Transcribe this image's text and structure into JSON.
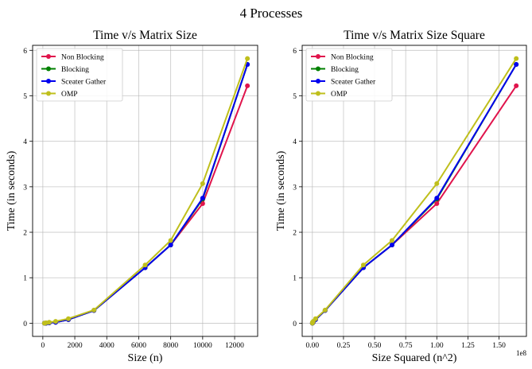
{
  "figure": {
    "suptitle": "4 Processes"
  },
  "chart_data": [
    {
      "type": "line",
      "title": "Time v/s Matrix Size",
      "xlabel": "Size (n)",
      "ylabel": "Time (in seconds)",
      "xlim": [
        -640,
        13440
      ],
      "ylim": [
        -0.29,
        6.11
      ],
      "xticks": [
        0,
        2000,
        4000,
        6000,
        8000,
        10000,
        12000
      ],
      "xtick_labels": [
        "0",
        "2000",
        "4000",
        "6000",
        "8000",
        "10000",
        "12000"
      ],
      "yticks": [
        0,
        1,
        2,
        3,
        4,
        5,
        6
      ],
      "ytick_labels": [
        "0",
        "1",
        "2",
        "3",
        "4",
        "5",
        "6"
      ],
      "x_offset_label": "",
      "grid": true,
      "legend_position": "upper-left",
      "x": [
        100,
        200,
        400,
        800,
        1600,
        3200,
        6400,
        8000,
        10000,
        12800
      ],
      "series": [
        {
          "name": "Non Blocking",
          "color": "#e0144c",
          "values": [
            0.0,
            0.0,
            0.01,
            0.02,
            0.08,
            0.28,
            1.22,
            1.72,
            2.63,
            5.22
          ]
        },
        {
          "name": "Blocking",
          "color": "#008000",
          "values": [
            0.0,
            0.0,
            0.01,
            0.02,
            0.08,
            0.28,
            1.22,
            1.72,
            2.73,
            5.69
          ]
        },
        {
          "name": "Sceater Gather",
          "color": "#0000ee",
          "values": [
            0.0,
            0.0,
            0.01,
            0.02,
            0.08,
            0.28,
            1.22,
            1.72,
            2.75,
            5.69
          ]
        },
        {
          "name": "OMP",
          "color": "#bfbf1c",
          "values": [
            0.0,
            0.01,
            0.02,
            0.04,
            0.1,
            0.29,
            1.28,
            1.82,
            3.07,
            5.82
          ]
        }
      ]
    },
    {
      "type": "line",
      "title": "Time v/s Matrix Size Square",
      "xlabel": "Size Squared (n^2)",
      "ylabel": "Time (in seconds)",
      "xlim": [
        -8192000,
        172032000
      ],
      "ylim": [
        -0.29,
        6.11
      ],
      "xticks": [
        0,
        25000000,
        50000000,
        75000000,
        100000000,
        125000000,
        150000000
      ],
      "xtick_labels": [
        "0.00",
        "0.25",
        "0.50",
        "0.75",
        "1.00",
        "1.25",
        "1.50"
      ],
      "x_offset_label": "1e8",
      "yticks": [
        0,
        1,
        2,
        3,
        4,
        5,
        6
      ],
      "ytick_labels": [
        "0",
        "1",
        "2",
        "3",
        "4",
        "5",
        "6"
      ],
      "grid": true,
      "legend_position": "upper-left",
      "x": [
        10000,
        40000,
        160000,
        640000,
        2560000,
        10240000,
        40960000,
        64000000,
        100000000,
        163840000
      ],
      "series": [
        {
          "name": "Non Blocking",
          "color": "#e0144c",
          "values": [
            0.0,
            0.0,
            0.01,
            0.02,
            0.08,
            0.28,
            1.22,
            1.72,
            2.63,
            5.22
          ]
        },
        {
          "name": "Blocking",
          "color": "#008000",
          "values": [
            0.0,
            0.0,
            0.01,
            0.02,
            0.08,
            0.28,
            1.22,
            1.72,
            2.73,
            5.69
          ]
        },
        {
          "name": "Sceater Gather",
          "color": "#0000ee",
          "values": [
            0.0,
            0.0,
            0.01,
            0.02,
            0.08,
            0.28,
            1.22,
            1.72,
            2.75,
            5.69
          ]
        },
        {
          "name": "OMP",
          "color": "#bfbf1c",
          "values": [
            0.0,
            0.01,
            0.02,
            0.04,
            0.1,
            0.29,
            1.28,
            1.82,
            3.07,
            5.82
          ]
        }
      ]
    }
  ]
}
